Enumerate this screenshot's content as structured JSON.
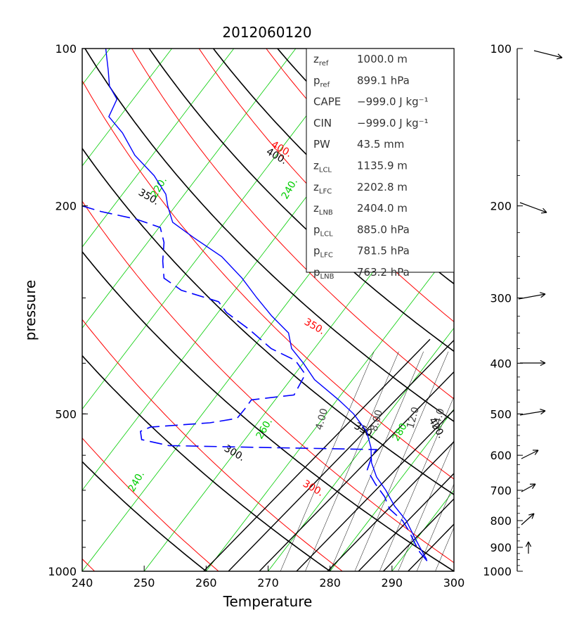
{
  "chart_data": {
    "type": "line",
    "title": "2012060120",
    "xlabel": "Temperature",
    "ylabel": "pressure",
    "xlim": [
      240,
      300
    ],
    "ylim": [
      1000,
      100
    ],
    "y_scale": "log",
    "x_ticks": [
      "240",
      "250",
      "260",
      "270",
      "280",
      "290",
      "300"
    ],
    "y_tick_labels": [
      "100",
      "200",
      "500",
      "1000"
    ],
    "stats": [
      {
        "label": "z",
        "sub": "ref",
        "value": "1000.0 m"
      },
      {
        "label": "p",
        "sub": "ref",
        "value": "899.1 hPa"
      },
      {
        "label": "CAPE",
        "sub": "",
        "value": "−999.0 J kg⁻¹"
      },
      {
        "label": "CIN",
        "sub": "",
        "value": "−999.0 J kg⁻¹"
      },
      {
        "label": "PW",
        "sub": "",
        "value": "43.5 mm"
      },
      {
        "label": "z",
        "sub": "LCL",
        "value": "1135.9 m"
      },
      {
        "label": "z",
        "sub": "LFC",
        "value": "2202.8 m"
      },
      {
        "label": "z",
        "sub": "LNB",
        "value": "2404.0 m"
      },
      {
        "label": "p",
        "sub": "LCL",
        "value": "885.0 hPa"
      },
      {
        "label": "p",
        "sub": "LFC",
        "value": "781.5 hPa"
      },
      {
        "label": "p",
        "sub": "LNB",
        "value": "763.2 hPa"
      }
    ],
    "dry_adiabat_labels": [
      "300.",
      "350.",
      "400."
    ],
    "theta_e_labels": [
      "300.",
      "350.",
      "400."
    ],
    "isotherm_labels": [
      "220.",
      "240.",
      "260.",
      "280.",
      "240."
    ],
    "mixing_ratio_labels": [
      "4.00",
      "8.00",
      "12.0",
      "14.0"
    ],
    "colors": {
      "temperature": "#0000ff",
      "dewpoint": "#0000ff",
      "dry_adiabat": "#000000",
      "theta_e": "#ff0000",
      "isotherm": "#00cc00",
      "mixing_ratio": "#000000"
    },
    "temperature_profile": [
      {
        "p": 100,
        "t": 243.8
      },
      {
        "p": 110,
        "t": 244.2
      },
      {
        "p": 118,
        "t": 244.4
      },
      {
        "p": 125,
        "t": 245.6
      },
      {
        "p": 135,
        "t": 244.3
      },
      {
        "p": 145,
        "t": 246.5
      },
      {
        "p": 160,
        "t": 248.5
      },
      {
        "p": 175,
        "t": 251.6
      },
      {
        "p": 190,
        "t": 253.5
      },
      {
        "p": 200,
        "t": 253.8
      },
      {
        "p": 215,
        "t": 254.6
      },
      {
        "p": 230,
        "t": 258.0
      },
      {
        "p": 250,
        "t": 262.5
      },
      {
        "p": 275,
        "t": 265.8
      },
      {
        "p": 300,
        "t": 268.2
      },
      {
        "p": 325,
        "t": 270.6
      },
      {
        "p": 350,
        "t": 273.3
      },
      {
        "p": 375,
        "t": 273.8
      },
      {
        "p": 400,
        "t": 275.7
      },
      {
        "p": 430,
        "t": 277.5
      },
      {
        "p": 470,
        "t": 281.4
      },
      {
        "p": 500,
        "t": 283.8
      },
      {
        "p": 540,
        "t": 285.9
      },
      {
        "p": 580,
        "t": 286.6
      },
      {
        "p": 620,
        "t": 286.7
      },
      {
        "p": 660,
        "t": 287.5
      },
      {
        "p": 700,
        "t": 289.0
      },
      {
        "p": 750,
        "t": 290.4
      },
      {
        "p": 800,
        "t": 292.3
      },
      {
        "p": 850,
        "t": 293.4
      },
      {
        "p": 900,
        "t": 294.5
      },
      {
        "p": 950,
        "t": 295.6
      }
    ],
    "dewpoint_profile": [
      {
        "p": 200,
        "t": 240.0
      },
      {
        "p": 205,
        "t": 243.0
      },
      {
        "p": 212,
        "t": 248.7
      },
      {
        "p": 220,
        "t": 252.6
      },
      {
        "p": 235,
        "t": 253.2
      },
      {
        "p": 255,
        "t": 253.0
      },
      {
        "p": 275,
        "t": 253.2
      },
      {
        "p": 290,
        "t": 256.0
      },
      {
        "p": 305,
        "t": 262.0
      },
      {
        "p": 320,
        "t": 263.3
      },
      {
        "p": 345,
        "t": 267.0
      },
      {
        "p": 375,
        "t": 270.5
      },
      {
        "p": 395,
        "t": 274.4
      },
      {
        "p": 420,
        "t": 276.0
      },
      {
        "p": 460,
        "t": 274.2
      },
      {
        "p": 470,
        "t": 267.3
      },
      {
        "p": 490,
        "t": 266.2
      },
      {
        "p": 510,
        "t": 265.0
      },
      {
        "p": 520,
        "t": 260.6
      },
      {
        "p": 530,
        "t": 251.0
      },
      {
        "p": 540,
        "t": 249.4
      },
      {
        "p": 560,
        "t": 249.6
      },
      {
        "p": 575,
        "t": 254.0
      },
      {
        "p": 580,
        "t": 270.0
      },
      {
        "p": 585,
        "t": 287.5
      },
      {
        "p": 600,
        "t": 286.8
      },
      {
        "p": 640,
        "t": 286.0
      },
      {
        "p": 680,
        "t": 287.3
      },
      {
        "p": 720,
        "t": 288.8
      },
      {
        "p": 760,
        "t": 289.6
      },
      {
        "p": 800,
        "t": 291.7
      },
      {
        "p": 840,
        "t": 292.8
      },
      {
        "p": 880,
        "t": 293.6
      },
      {
        "p": 920,
        "t": 294.5
      },
      {
        "p": 960,
        "t": 295.8
      }
    ],
    "wind_axis_labels": [
      "100",
      "200",
      "300",
      "400",
      "500",
      "600",
      "700",
      "800",
      "900",
      "1000"
    ],
    "wind_barb_pressures": [
      100,
      200,
      300,
      400,
      500,
      600,
      700,
      800,
      900
    ]
  }
}
